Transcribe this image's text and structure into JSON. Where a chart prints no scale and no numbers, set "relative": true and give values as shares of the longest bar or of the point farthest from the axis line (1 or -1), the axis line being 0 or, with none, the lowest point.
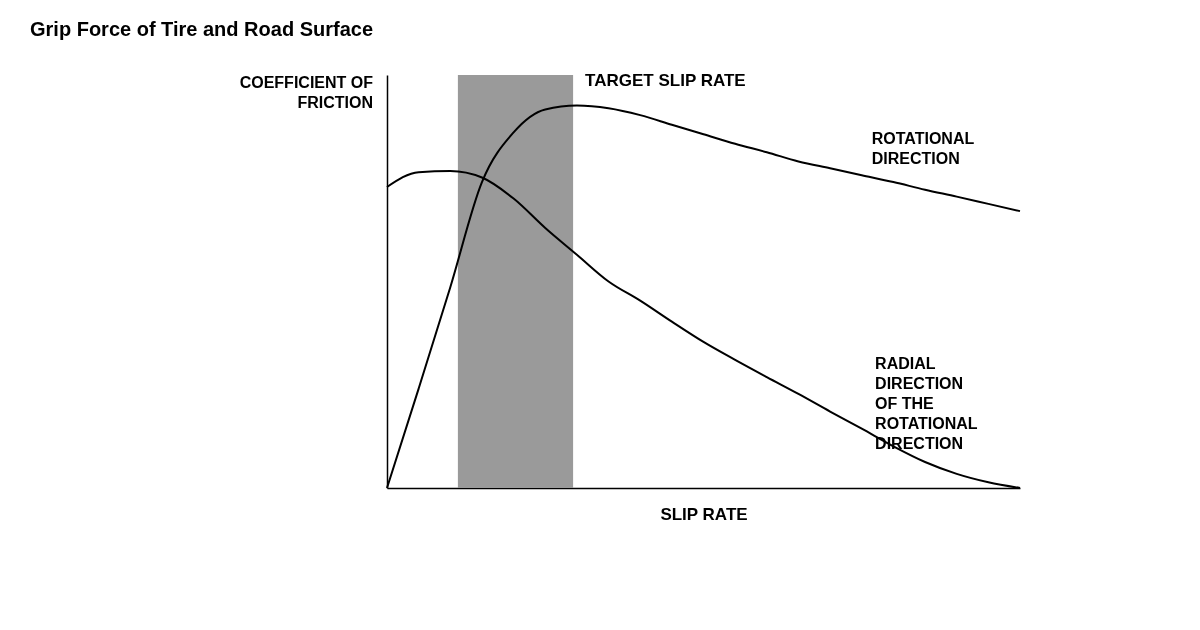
{
  "chart_data": {
    "type": "line",
    "title": "Grip Force of Tire and Road Surface",
    "xlabel": "SLIP RATE",
    "ylabel": "COEFFICIENT OF FRICTION",
    "relative": true,
    "legend": false,
    "tick_labels": false,
    "categories": [
      null,
      null,
      null,
      null,
      null,
      null,
      null,
      null,
      null,
      null,
      null,
      null,
      null,
      null,
      null,
      null,
      null,
      null,
      null,
      null,
      null
    ],
    "series": [
      {
        "name": "ROTATIONAL DIRECTION",
        "color": "#000000",
        "values": [
          0,
          0.26,
          0.525,
          0.8,
          0.93,
          0.99,
          1,
          0.993,
          0.975,
          0.95,
          0.925,
          0.9,
          0.878,
          0.854,
          0.836,
          0.818,
          0.8,
          0.78,
          0.762,
          0.743,
          0.724
        ]
      },
      {
        "name": "RADIAL DIRECTION OF THE ROTATIONAL DIRECTION",
        "color": "#000000",
        "values": [
          0.787,
          0.826,
          0.829,
          0.812,
          0.757,
          0.68,
          0.61,
          0.54,
          0.49,
          0.435,
          0.382,
          0.335,
          0.29,
          0.246,
          0.2,
          0.155,
          0.109,
          0.068,
          0.037,
          0.015,
          0
        ]
      }
    ],
    "annotations": [
      "TARGET SLIP RATE"
    ]
  }
}
